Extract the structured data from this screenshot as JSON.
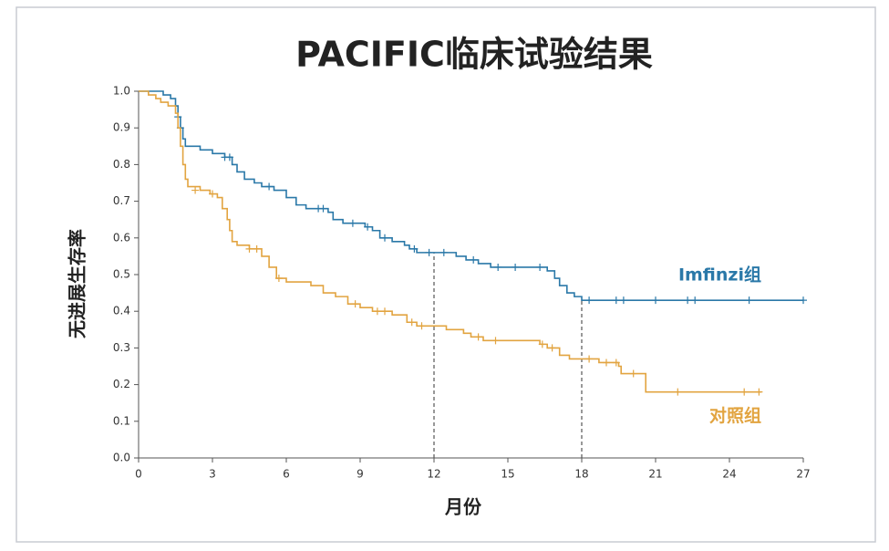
{
  "chart_data": {
    "type": "km",
    "title": "PACIFIC临床试验结果",
    "x_label": "月份",
    "y_label": "无进展生存率",
    "xlim": [
      0,
      27
    ],
    "xticks": [
      0,
      3,
      6,
      9,
      12,
      15,
      18,
      21,
      24,
      27
    ],
    "ylim": [
      0,
      1.0
    ],
    "yticks": [
      {
        "value": 0,
        "label": "0.0"
      },
      {
        "value": 0.1,
        "label": "0.1"
      },
      {
        "value": 0.2,
        "label": "0.2"
      },
      {
        "value": 0.3,
        "label": "0.3"
      },
      {
        "value": 0.4,
        "label": "0.4"
      },
      {
        "value": 0.5,
        "label": "0.5"
      },
      {
        "value": 0.6,
        "label": "0.6"
      },
      {
        "value": 0.7,
        "label": "0.7"
      },
      {
        "value": 0.8,
        "label": "0.8"
      },
      {
        "value": 0.9,
        "label": "0.9"
      },
      {
        "value": 1.0,
        "label": "1.0"
      }
    ],
    "reference_lines": [
      {
        "x": 12,
        "y": 0.56
      },
      {
        "x": 18,
        "y": 0.43
      }
    ],
    "series": [
      {
        "name": "Imfinzi组",
        "color": "#2a78a8",
        "x": [
          0,
          0.7,
          1.0,
          1.3,
          1.5,
          1.6,
          1.7,
          1.8,
          1.9,
          2.5,
          3.0,
          3.5,
          3.8,
          4.0,
          4.3,
          4.7,
          5.0,
          5.5,
          6.0,
          6.4,
          6.8,
          7.7,
          7.9,
          8.3,
          9.2,
          9.5,
          9.8,
          10.3,
          10.8,
          11.0,
          11.3,
          12.9,
          13.3,
          13.8,
          14.3,
          16.6,
          16.9,
          17.1,
          17.4,
          17.7,
          18.0,
          27.0
        ],
        "values": [
          1.0,
          1.0,
          0.99,
          0.98,
          0.96,
          0.93,
          0.9,
          0.87,
          0.85,
          0.84,
          0.83,
          0.82,
          0.8,
          0.78,
          0.76,
          0.75,
          0.74,
          0.73,
          0.71,
          0.69,
          0.68,
          0.67,
          0.65,
          0.64,
          0.63,
          0.62,
          0.6,
          0.59,
          0.58,
          0.57,
          0.56,
          0.55,
          0.54,
          0.53,
          0.52,
          0.51,
          0.49,
          0.47,
          0.45,
          0.44,
          0.43,
          0.43
        ],
        "censored_x": [
          1.6,
          1.7,
          3.5,
          3.7,
          5.3,
          7.3,
          7.5,
          8.7,
          9.3,
          10.0,
          11.2,
          11.8,
          12.4,
          13.6,
          14.6,
          15.3,
          16.3,
          18.3,
          19.4,
          19.7,
          21.0,
          22.3,
          22.6,
          24.8,
          27.0
        ],
        "censored_y": [
          0.93,
          0.9,
          0.82,
          0.82,
          0.74,
          0.68,
          0.68,
          0.64,
          0.63,
          0.6,
          0.57,
          0.56,
          0.56,
          0.54,
          0.52,
          0.52,
          0.52,
          0.43,
          0.43,
          0.43,
          0.43,
          0.43,
          0.43,
          0.43,
          0.43
        ]
      },
      {
        "name": "对照组",
        "color": "#e2a440",
        "x": [
          0,
          0.4,
          0.7,
          0.9,
          1.2,
          1.5,
          1.6,
          1.7,
          1.8,
          1.9,
          2.0,
          2.5,
          2.9,
          3.2,
          3.4,
          3.6,
          3.7,
          3.8,
          4.0,
          4.5,
          5.0,
          5.3,
          5.6,
          6.0,
          7.0,
          7.5,
          8.0,
          8.5,
          9.0,
          9.5,
          10.3,
          10.9,
          11.3,
          12.5,
          13.2,
          13.5,
          14.0,
          16.3,
          16.6,
          17.1,
          17.5,
          18.7,
          19.5,
          19.6,
          20.6,
          25.3
        ],
        "values": [
          1.0,
          0.99,
          0.98,
          0.97,
          0.96,
          0.94,
          0.9,
          0.85,
          0.8,
          0.76,
          0.74,
          0.73,
          0.72,
          0.71,
          0.68,
          0.65,
          0.62,
          0.59,
          0.58,
          0.57,
          0.55,
          0.52,
          0.49,
          0.48,
          0.47,
          0.45,
          0.44,
          0.42,
          0.41,
          0.4,
          0.39,
          0.37,
          0.36,
          0.35,
          0.34,
          0.33,
          0.32,
          0.31,
          0.3,
          0.28,
          0.27,
          0.26,
          0.25,
          0.23,
          0.18,
          0.18
        ],
        "censored_x": [
          2.3,
          3.0,
          4.5,
          4.8,
          5.7,
          8.8,
          9.7,
          10.0,
          11.1,
          11.5,
          13.8,
          14.5,
          16.4,
          16.8,
          18.3,
          19.0,
          19.4,
          20.1,
          21.9,
          24.6,
          25.2
        ],
        "censored_y": [
          0.73,
          0.72,
          0.57,
          0.57,
          0.49,
          0.42,
          0.4,
          0.4,
          0.37,
          0.36,
          0.33,
          0.32,
          0.31,
          0.3,
          0.27,
          0.26,
          0.26,
          0.23,
          0.18,
          0.18,
          0.18
        ]
      }
    ]
  }
}
